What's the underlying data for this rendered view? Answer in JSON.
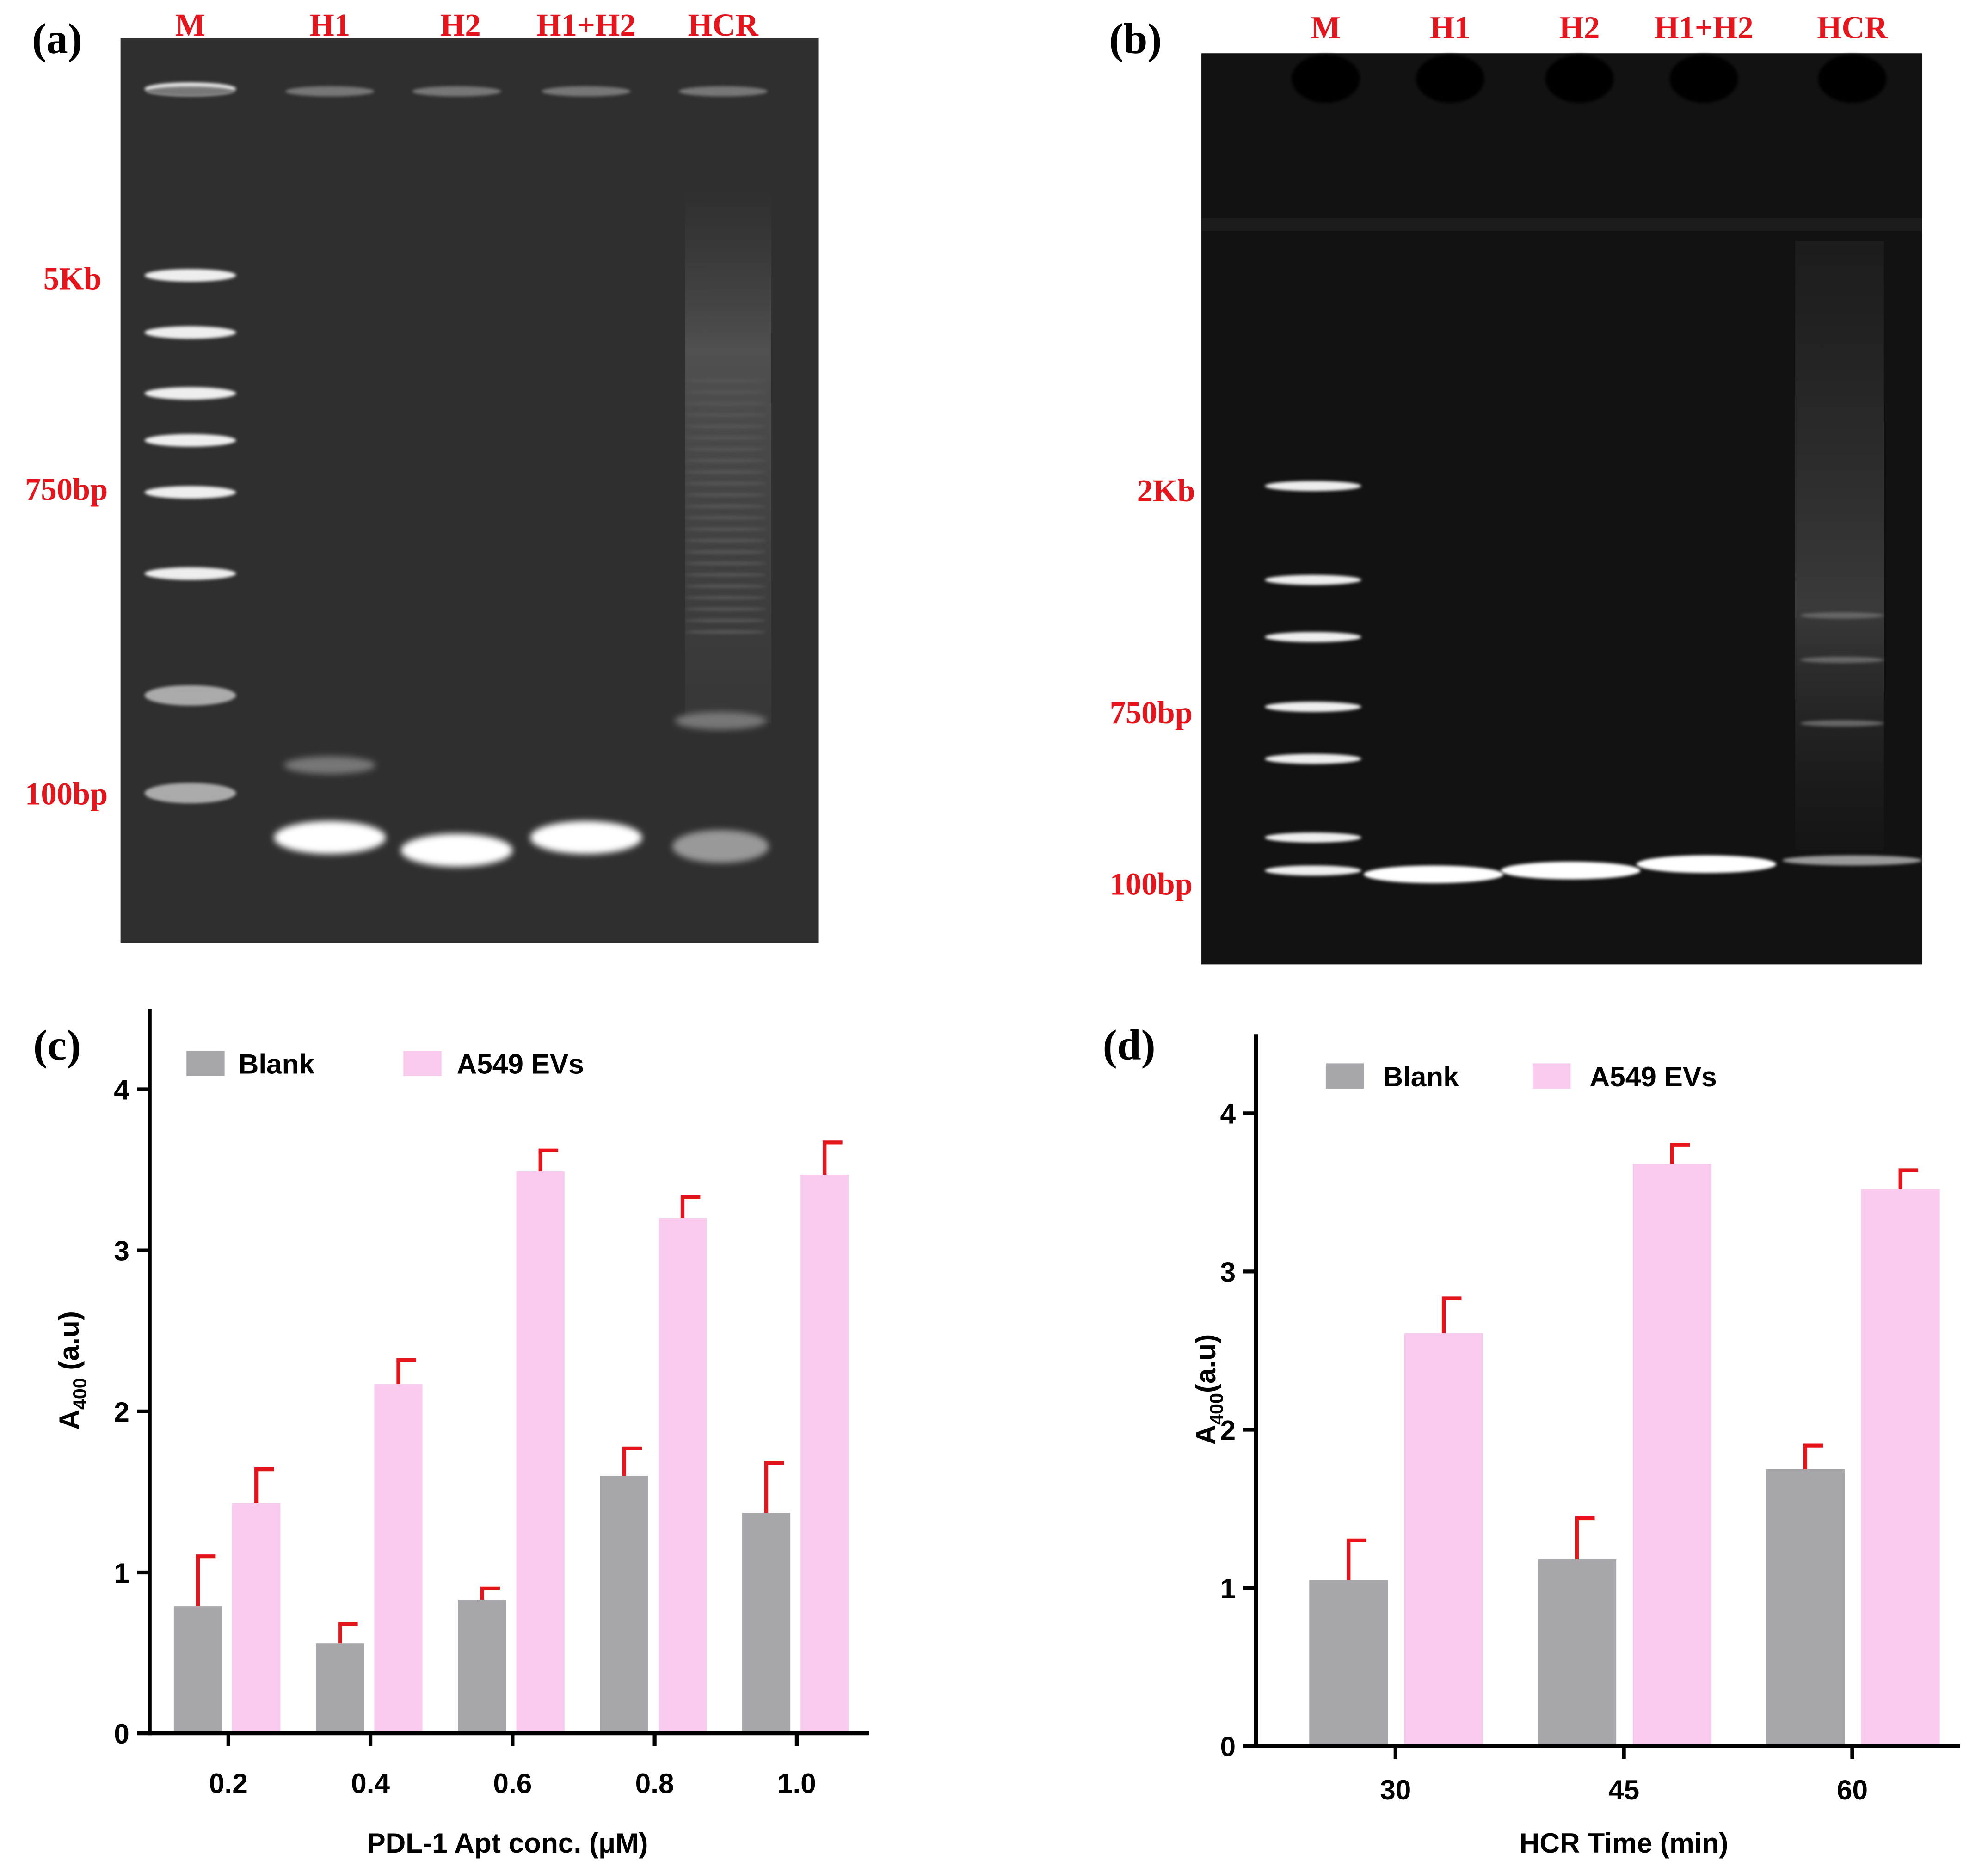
{
  "gels": [
    {
      "panel": "(a)",
      "lanes": [
        "M",
        "H1",
        "H2",
        "H1+H2",
        "HCR"
      ],
      "markers": [
        "5Kb",
        "750bp",
        "100bp"
      ]
    },
    {
      "panel": "(b)",
      "lanes": [
        "M",
        "H1",
        "H2",
        "H1+H2",
        "HCR"
      ],
      "markers": [
        "2Kb",
        "750bp",
        "100bp"
      ]
    }
  ],
  "chart_data": [
    {
      "type": "bar",
      "panel": "(c)",
      "x_label": "PDL-1 Apt conc. (μM)",
      "y_label": [
        "A",
        "400",
        " (a.u)"
      ],
      "categories": [
        "0.2",
        "0.4",
        "0.6",
        "0.8",
        "1.0"
      ],
      "series": [
        {
          "name": "Blank",
          "color": "#a7a7ab",
          "values": [
            0.79,
            0.56,
            0.83,
            1.6,
            1.37
          ],
          "errors": [
            0.31,
            0.12,
            0.07,
            0.17,
            0.31
          ]
        },
        {
          "name": "A549 EVs",
          "color": "#f8caed",
          "values": [
            1.43,
            2.17,
            3.49,
            3.2,
            3.47
          ],
          "errors": [
            0.21,
            0.15,
            0.13,
            0.13,
            0.2
          ]
        }
      ],
      "error_color": "#e8141c",
      "ylim": [
        0,
        4.5
      ],
      "yticks": [
        0,
        1,
        2,
        3,
        4
      ],
      "legend": "top"
    },
    {
      "type": "bar",
      "panel": "(d)",
      "x_label": "HCR Time (min)",
      "y_label": [
        "A",
        "400",
        "(a.u)"
      ],
      "categories": [
        "30",
        "45",
        "60"
      ],
      "series": [
        {
          "name": "Blank",
          "color": "#a7a7ab",
          "values": [
            1.05,
            1.18,
            1.75
          ],
          "errors": [
            0.25,
            0.26,
            0.15
          ]
        },
        {
          "name": "A549 EVs",
          "color": "#f8caed",
          "values": [
            2.61,
            3.68,
            3.52
          ],
          "errors": [
            0.22,
            0.12,
            0.12
          ]
        }
      ],
      "error_color": "#e8141c",
      "ylim": [
        0,
        4.5
      ],
      "yticks": [
        0,
        1,
        2,
        3,
        4
      ],
      "legend": "top"
    }
  ]
}
